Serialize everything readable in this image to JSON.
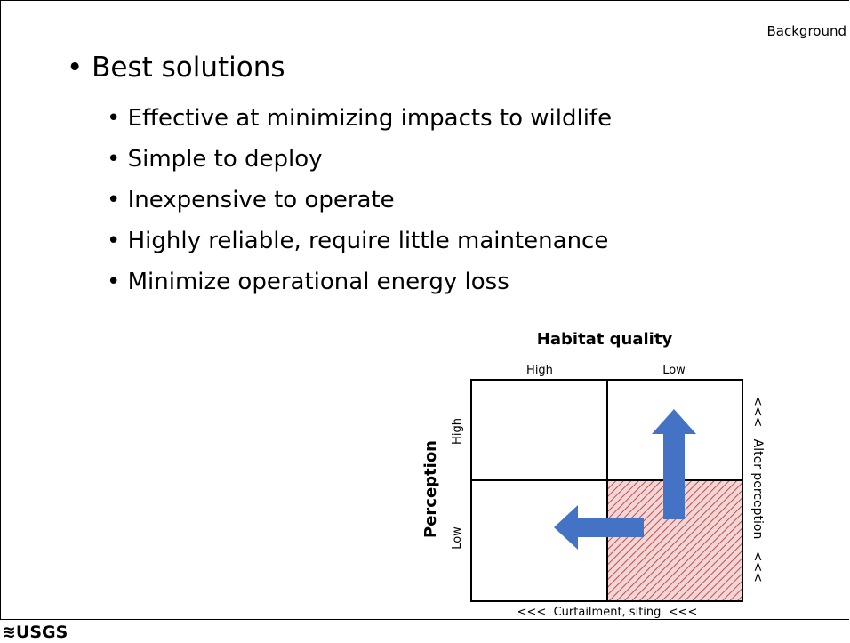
{
  "header": {
    "section": "Background"
  },
  "bullets": {
    "title": "Best solutions",
    "items": [
      "Effective at minimizing impacts to wildlife",
      "Simple to deploy",
      "Inexpensive to operate",
      "Highly reliable, require little maintenance",
      "Minimize operational energy loss"
    ]
  },
  "diagram": {
    "top_title": "Habitat quality",
    "col_labels": [
      "High",
      "Low"
    ],
    "left_title": "Perception",
    "row_labels": [
      "High",
      "Low"
    ],
    "right_label": "<<<   Alter perception   <<<",
    "bottom_label": "<<<  Curtailment, siting  <<<"
  },
  "footer": {
    "logo": "≋USGS"
  }
}
